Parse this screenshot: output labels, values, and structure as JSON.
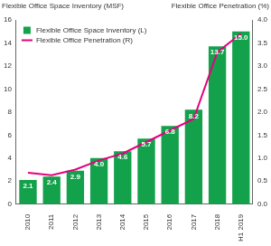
{
  "chart_data": {
    "type": "bar",
    "ylabel": "Flexible Office Space Inventory (MSF)",
    "y2label": "Flexible Office Penetration (%)",
    "categories": [
      "2010",
      "2011",
      "2012",
      "2013",
      "2014",
      "2015",
      "2016",
      "2017",
      "2018",
      "H1 2019"
    ],
    "series": [
      {
        "name": "Flexible Office Space Inventory (L)",
        "type": "bar",
        "color": "#13a14b",
        "values": [
          2.1,
          2.4,
          2.9,
          4.0,
          4.6,
          5.7,
          6.8,
          8.2,
          13.7,
          15.0
        ],
        "value_labels": [
          "2.1",
          "2.4",
          "2.9",
          "4.0",
          "4.6",
          "5.7",
          "6.8",
          "8.2",
          "13.7",
          "15.0"
        ],
        "data_labels": true
      },
      {
        "name": "Flexible Office Penetration (R)",
        "type": "line",
        "axis": "y2",
        "color": "#e5007d",
        "values": [
          0.68,
          0.63,
          0.75,
          0.95,
          1.1,
          1.35,
          1.6,
          1.85,
          3.3,
          3.7
        ],
        "marker": "none",
        "data_labels": false
      }
    ],
    "ylim": [
      0,
      16
    ],
    "yticks": [
      0,
      2,
      4,
      6,
      8,
      10,
      12,
      14,
      16
    ],
    "y2lim": [
      0,
      4
    ],
    "y2ticks": [
      {
        "value": 0,
        "label": "0.0"
      },
      0.5,
      {
        "value": 1,
        "label": "1.0"
      },
      1.5,
      {
        "value": 2,
        "label": "2.0"
      },
      2.5,
      {
        "value": 3,
        "label": "3.0"
      },
      3.5,
      {
        "value": 4,
        "label": "4.0"
      }
    ],
    "grid": false,
    "legend": "upper left"
  }
}
